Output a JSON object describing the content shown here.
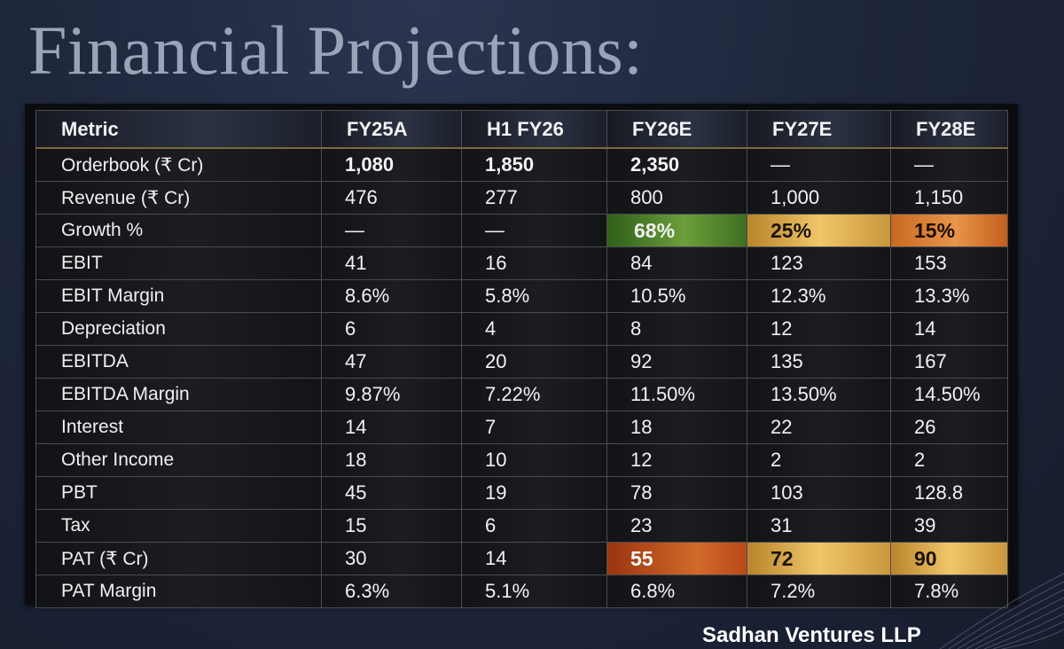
{
  "title": "Financial Projections:",
  "brand": "Sadhan Ventures LLP",
  "colors": {
    "background": "#1e263b",
    "highlight_green": "#6c9e3a",
    "highlight_gold": "#f0c66a",
    "highlight_orange": "#e8944a"
  },
  "table": {
    "headers": [
      "Metric",
      "FY25A",
      "H1 FY26",
      "FY26E",
      "FY27E",
      "FY28E"
    ],
    "rows": [
      {
        "metric": "Orderbook (₹ Cr)",
        "values": [
          "1,080",
          "1,850",
          "2,350",
          "—",
          "—"
        ]
      },
      {
        "metric": "Revenue (₹ Cr)",
        "values": [
          "476",
          "277",
          "800",
          "1,000",
          "1,150"
        ]
      },
      {
        "metric": "Growth %",
        "values": [
          "—",
          "—",
          "68%",
          "25%",
          "15%"
        ]
      },
      {
        "metric": "EBIT",
        "values": [
          "41",
          "16",
          "84",
          "123",
          "153"
        ]
      },
      {
        "metric": "EBIT Margin",
        "values": [
          "8.6%",
          "5.8%",
          "10.5%",
          "12.3%",
          "13.3%"
        ]
      },
      {
        "metric": "Depreciation",
        "values": [
          "6",
          "4",
          "8",
          "12",
          "14"
        ]
      },
      {
        "metric": "EBITDA",
        "values": [
          "47",
          "20",
          "92",
          "135",
          "167"
        ]
      },
      {
        "metric": "EBITDA Margin",
        "values": [
          "9.87%",
          "7.22%",
          "11.50%",
          "13.50%",
          "14.50%"
        ]
      },
      {
        "metric": "Interest",
        "values": [
          "14",
          "7",
          "18",
          "22",
          "26"
        ]
      },
      {
        "metric": "Other Income",
        "values": [
          "18",
          "10",
          "12",
          "2",
          "2"
        ]
      },
      {
        "metric": "PBT",
        "values": [
          "45",
          "19",
          "78",
          "103",
          "128.8"
        ]
      },
      {
        "metric": "Tax",
        "values": [
          "15",
          "6",
          "23",
          "31",
          "39"
        ]
      },
      {
        "metric": "PAT (₹ Cr)",
        "values": [
          "30",
          "14",
          "55",
          "72",
          "90"
        ]
      },
      {
        "metric": "PAT Margin",
        "values": [
          "6.3%",
          "5.1%",
          "6.8%",
          "7.2%",
          "7.8%"
        ]
      }
    ]
  }
}
